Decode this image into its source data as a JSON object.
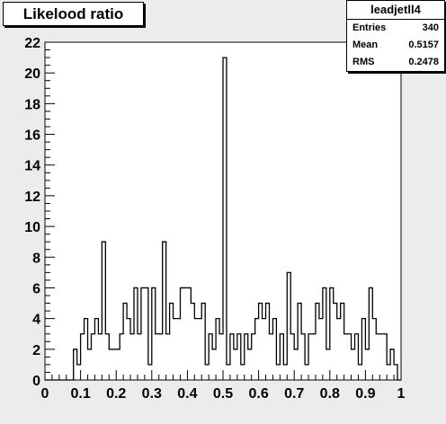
{
  "title": "Likelood ratio",
  "stats": {
    "name": "leadjetll4",
    "rows": [
      {
        "label": "Entries",
        "value": "340"
      },
      {
        "label": "Mean",
        "value": "0.5157"
      },
      {
        "label": "RMS",
        "value": "0.2478"
      }
    ]
  },
  "chart_data": {
    "type": "histogram",
    "xlim": [
      0,
      1
    ],
    "ylim": [
      0,
      22
    ],
    "bin_width": 0.01,
    "x_ticks": [
      "0",
      "0.1",
      "0.2",
      "0.3",
      "0.4",
      "0.5",
      "0.6",
      "0.7",
      "0.8",
      "0.9",
      "1"
    ],
    "y_ticks": [
      "0",
      "2",
      "4",
      "6",
      "8",
      "10",
      "12",
      "14",
      "16",
      "18",
      "20",
      "22"
    ],
    "values": [
      0,
      0,
      0,
      0,
      0,
      0,
      0,
      0,
      2,
      1,
      3,
      4,
      2,
      3,
      4,
      3,
      9,
      3,
      2,
      2,
      2,
      3,
      5,
      4,
      3,
      6,
      3,
      6,
      6,
      1,
      6,
      3,
      3,
      9,
      3,
      5,
      4,
      4,
      6,
      6,
      6,
      5,
      4,
      4,
      5,
      1,
      3,
      2,
      4,
      3,
      21,
      1,
      3,
      2,
      3,
      1,
      3,
      2,
      3,
      4,
      5,
      4,
      5,
      3,
      4,
      1,
      3,
      1,
      7,
      3,
      2,
      5,
      3,
      1,
      3,
      3,
      5,
      4,
      6,
      2,
      6,
      5,
      4,
      5,
      3,
      3,
      2,
      3,
      1,
      4,
      2,
      6,
      4,
      3,
      3,
      3,
      1,
      2,
      1,
      0
    ]
  }
}
